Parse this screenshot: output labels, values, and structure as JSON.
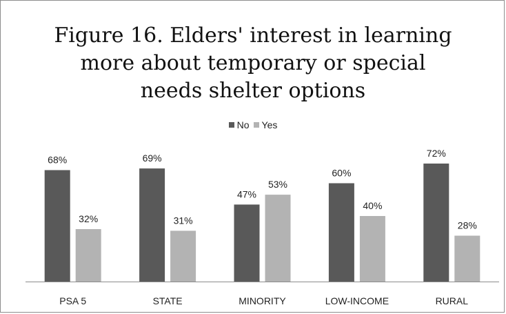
{
  "chart_data": {
    "type": "bar",
    "title": "Figure 16. Elders' interest in learning more about temporary or special needs shelter options",
    "title_lines": [
      "Figure 16. Elders' interest in learning",
      "more about temporary or special",
      "needs shelter options"
    ],
    "categories": [
      "PSA 5",
      "STATE",
      "MINORITY",
      "LOW-INCOME",
      "RURAL"
    ],
    "series": [
      {
        "name": "No",
        "values": [
          68,
          69,
          47,
          60,
          72
        ],
        "labels": [
          "68%",
          "69%",
          "47%",
          "60%",
          "72%"
        ],
        "color": "#595959"
      },
      {
        "name": "Yes",
        "values": [
          32,
          31,
          53,
          40,
          28
        ],
        "labels": [
          "32%",
          "31%",
          "53%",
          "40%",
          "28%"
        ],
        "color": "#b3b3b3"
      }
    ],
    "ylim": [
      0,
      80
    ],
    "legend_position": "top-center",
    "grid": false
  }
}
